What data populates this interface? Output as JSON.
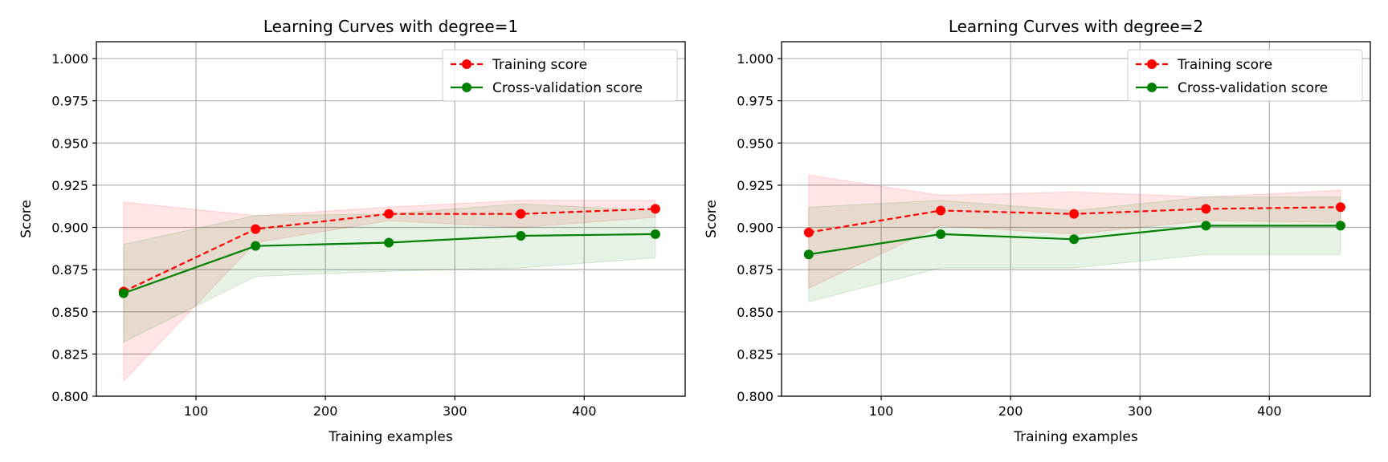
{
  "chart_data": [
    {
      "type": "line",
      "title": "Learning Curves with degree=1",
      "xlabel": "Training examples",
      "ylabel": "Score",
      "xlim": [
        23,
        478
      ],
      "ylim": [
        0.8,
        1.01
      ],
      "xticks": [
        100,
        200,
        300,
        400
      ],
      "yticks": [
        0.8,
        0.825,
        0.85,
        0.875,
        0.9,
        0.925,
        0.95,
        0.975,
        1.0
      ],
      "grid": true,
      "legend_position": "top-right",
      "x": [
        44,
        146,
        249,
        351,
        455
      ],
      "series": [
        {
          "name": "Training score",
          "color": "#ff0000",
          "style": "dashed",
          "values": [
            0.862,
            0.899,
            0.908,
            0.908,
            0.911
          ],
          "band_low": [
            0.809,
            0.891,
            0.904,
            0.9,
            0.906
          ],
          "band_high": [
            0.915,
            0.907,
            0.912,
            0.916,
            0.916
          ]
        },
        {
          "name": "Cross-validation score",
          "color": "#008000",
          "style": "solid",
          "values": [
            0.861,
            0.889,
            0.891,
            0.895,
            0.896
          ],
          "band_low": [
            0.832,
            0.871,
            0.874,
            0.876,
            0.882
          ],
          "band_high": [
            0.89,
            0.907,
            0.908,
            0.914,
            0.91
          ]
        }
      ]
    },
    {
      "type": "line",
      "title": "Learning Curves with degree=2",
      "xlabel": "Training examples",
      "ylabel": "Score",
      "xlim": [
        23,
        478
      ],
      "ylim": [
        0.8,
        1.01
      ],
      "xticks": [
        100,
        200,
        300,
        400
      ],
      "yticks": [
        0.8,
        0.825,
        0.85,
        0.875,
        0.9,
        0.925,
        0.95,
        0.975,
        1.0
      ],
      "grid": true,
      "legend_position": "top-right",
      "x": [
        44,
        146,
        249,
        351,
        455
      ],
      "series": [
        {
          "name": "Training score",
          "color": "#ff0000",
          "style": "dashed",
          "values": [
            0.897,
            0.91,
            0.908,
            0.911,
            0.912
          ],
          "band_low": [
            0.864,
            0.901,
            0.896,
            0.904,
            0.903
          ],
          "band_high": [
            0.931,
            0.919,
            0.921,
            0.918,
            0.922
          ]
        },
        {
          "name": "Cross-validation score",
          "color": "#008000",
          "style": "solid",
          "values": [
            0.884,
            0.896,
            0.893,
            0.901,
            0.901
          ],
          "band_low": [
            0.856,
            0.876,
            0.876,
            0.884,
            0.884
          ],
          "band_high": [
            0.912,
            0.916,
            0.91,
            0.918,
            0.918
          ]
        }
      ]
    }
  ]
}
